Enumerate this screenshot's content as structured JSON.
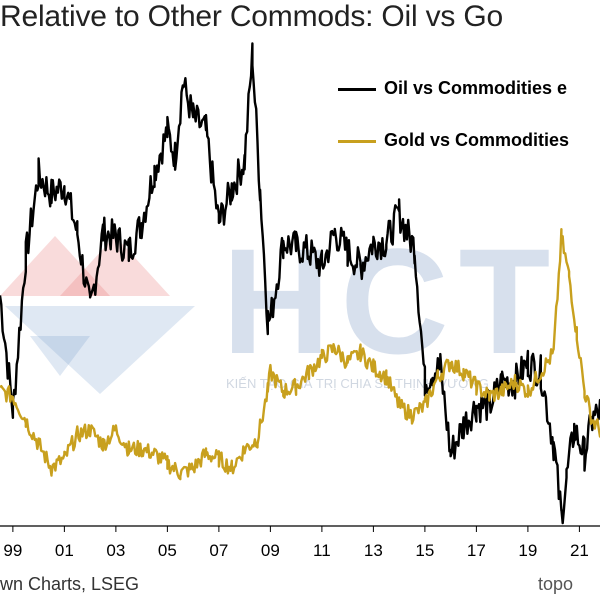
{
  "title": "Relative to Other Commods: Oil vs Go",
  "source": "wn Charts, LSEG",
  "brand": "topo",
  "watermark": {
    "letters": "HCT",
    "tagline": "KIẾN TẠO GIÁ TRỊ CHIA SẺ THỊNH VƯỢNG"
  },
  "colors": {
    "oil": "#000000",
    "gold": "#C8A01E"
  },
  "chart_data": {
    "type": "line",
    "title": "Relative to Other Commods: Oil vs Go",
    "xlabel": "",
    "ylabel": "",
    "grid": false,
    "legend": "top-right",
    "xlim": [
      1998.5,
      2021.8
    ],
    "ylim": [
      0,
      1
    ],
    "x_ticks": [
      "99",
      "01",
      "03",
      "05",
      "07",
      "09",
      "11",
      "13",
      "15",
      "17",
      "19",
      "21"
    ],
    "x_tick_values": [
      1999,
      2001,
      2003,
      2005,
      2007,
      2009,
      2011,
      2013,
      2015,
      2017,
      2019,
      2021
    ],
    "series": [
      {
        "name": "Oil vs Commodities e",
        "color": "#000000",
        "x": [
          1998.5,
          1999.0,
          1999.5,
          2000.0,
          2000.5,
          2001.0,
          2001.5,
          2002.0,
          2002.5,
          2003.0,
          2003.5,
          2004.0,
          2004.5,
          2005.0,
          2005.3,
          2005.6,
          2006.0,
          2006.5,
          2007.0,
          2007.5,
          2008.0,
          2008.3,
          2008.6,
          2008.9,
          2009.0,
          2009.5,
          2010.0,
          2010.5,
          2011.0,
          2011.5,
          2012.0,
          2012.5,
          2013.0,
          2013.5,
          2014.0,
          2014.3,
          2014.6,
          2015.0,
          2015.3,
          2015.6,
          2016.0,
          2016.5,
          2017.0,
          2017.5,
          2018.0,
          2018.5,
          2019.0,
          2019.5,
          2020.0,
          2020.3,
          2020.5,
          2020.8,
          2021.2,
          2021.5,
          2021.8
        ],
        "values": [
          0.48,
          0.24,
          0.56,
          0.73,
          0.69,
          0.71,
          0.61,
          0.45,
          0.61,
          0.6,
          0.57,
          0.63,
          0.74,
          0.82,
          0.77,
          0.92,
          0.85,
          0.82,
          0.63,
          0.7,
          0.76,
          0.98,
          0.7,
          0.43,
          0.43,
          0.59,
          0.58,
          0.57,
          0.54,
          0.61,
          0.57,
          0.54,
          0.59,
          0.59,
          0.65,
          0.61,
          0.58,
          0.3,
          0.32,
          0.33,
          0.15,
          0.21,
          0.25,
          0.25,
          0.3,
          0.3,
          0.34,
          0.32,
          0.17,
          0.02,
          0.1,
          0.2,
          0.15,
          0.22,
          0.24
        ]
      },
      {
        "name": "Gold vs Commodities",
        "color": "#C8A01E",
        "x": [
          1998.5,
          1999.0,
          1999.5,
          2000.0,
          2000.5,
          2001.0,
          2001.5,
          2002.0,
          2002.5,
          2003.0,
          2003.5,
          2004.0,
          2004.5,
          2005.0,
          2005.5,
          2006.0,
          2006.5,
          2007.0,
          2007.5,
          2008.0,
          2008.5,
          2008.9,
          2009.0,
          2009.5,
          2010.0,
          2010.5,
          2011.0,
          2011.5,
          2012.0,
          2012.5,
          2013.0,
          2013.5,
          2014.0,
          2014.5,
          2015.0,
          2015.5,
          2016.0,
          2016.5,
          2017.0,
          2017.5,
          2018.0,
          2018.5,
          2019.0,
          2019.5,
          2020.0,
          2020.3,
          2020.6,
          2020.9,
          2021.2,
          2021.5,
          2021.8
        ],
        "values": [
          0.28,
          0.27,
          0.22,
          0.17,
          0.12,
          0.14,
          0.19,
          0.2,
          0.17,
          0.2,
          0.16,
          0.16,
          0.15,
          0.13,
          0.11,
          0.12,
          0.15,
          0.14,
          0.12,
          0.16,
          0.18,
          0.28,
          0.32,
          0.28,
          0.29,
          0.32,
          0.35,
          0.37,
          0.34,
          0.36,
          0.33,
          0.31,
          0.25,
          0.23,
          0.25,
          0.31,
          0.34,
          0.32,
          0.29,
          0.27,
          0.28,
          0.3,
          0.28,
          0.32,
          0.36,
          0.6,
          0.52,
          0.4,
          0.28,
          0.22,
          0.2
        ]
      }
    ]
  }
}
